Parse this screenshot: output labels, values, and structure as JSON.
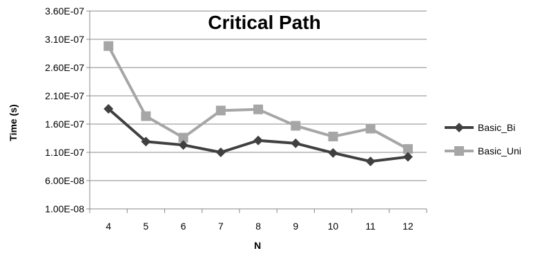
{
  "chart_data": {
    "type": "line",
    "title": "Critical Path",
    "xlabel": "N",
    "ylabel": "Time (s)",
    "categories": [
      "4",
      "5",
      "6",
      "7",
      "8",
      "9",
      "10",
      "11",
      "12"
    ],
    "ylim": [
      1e-08,
      3.6e-07
    ],
    "yticks": [
      1e-08,
      6e-08,
      1.1e-07,
      1.6e-07,
      2.1e-07,
      2.6e-07,
      3.1e-07,
      3.6e-07
    ],
    "ytick_labels": [
      "1.00E-08",
      "6.00E-08",
      "1.10E-07",
      "1.60E-07",
      "2.10E-07",
      "2.60E-07",
      "3.10E-07",
      "3.60E-07"
    ],
    "grid": true,
    "legend_position": "right",
    "series": [
      {
        "name": "Basic_Bi",
        "color": "#404040",
        "marker": "diamond",
        "values": [
          1.87e-07,
          1.29e-07,
          1.23e-07,
          1.1e-07,
          1.31e-07,
          1.26e-07,
          1.09e-07,
          9.4e-08,
          1.02e-07
        ]
      },
      {
        "name": "Basic_Uni",
        "color": "#a6a6a6",
        "marker": "square",
        "values": [
          2.98e-07,
          1.74e-07,
          1.36e-07,
          1.84e-07,
          1.86e-07,
          1.57e-07,
          1.38e-07,
          1.52e-07,
          1.16e-07
        ]
      }
    ]
  }
}
